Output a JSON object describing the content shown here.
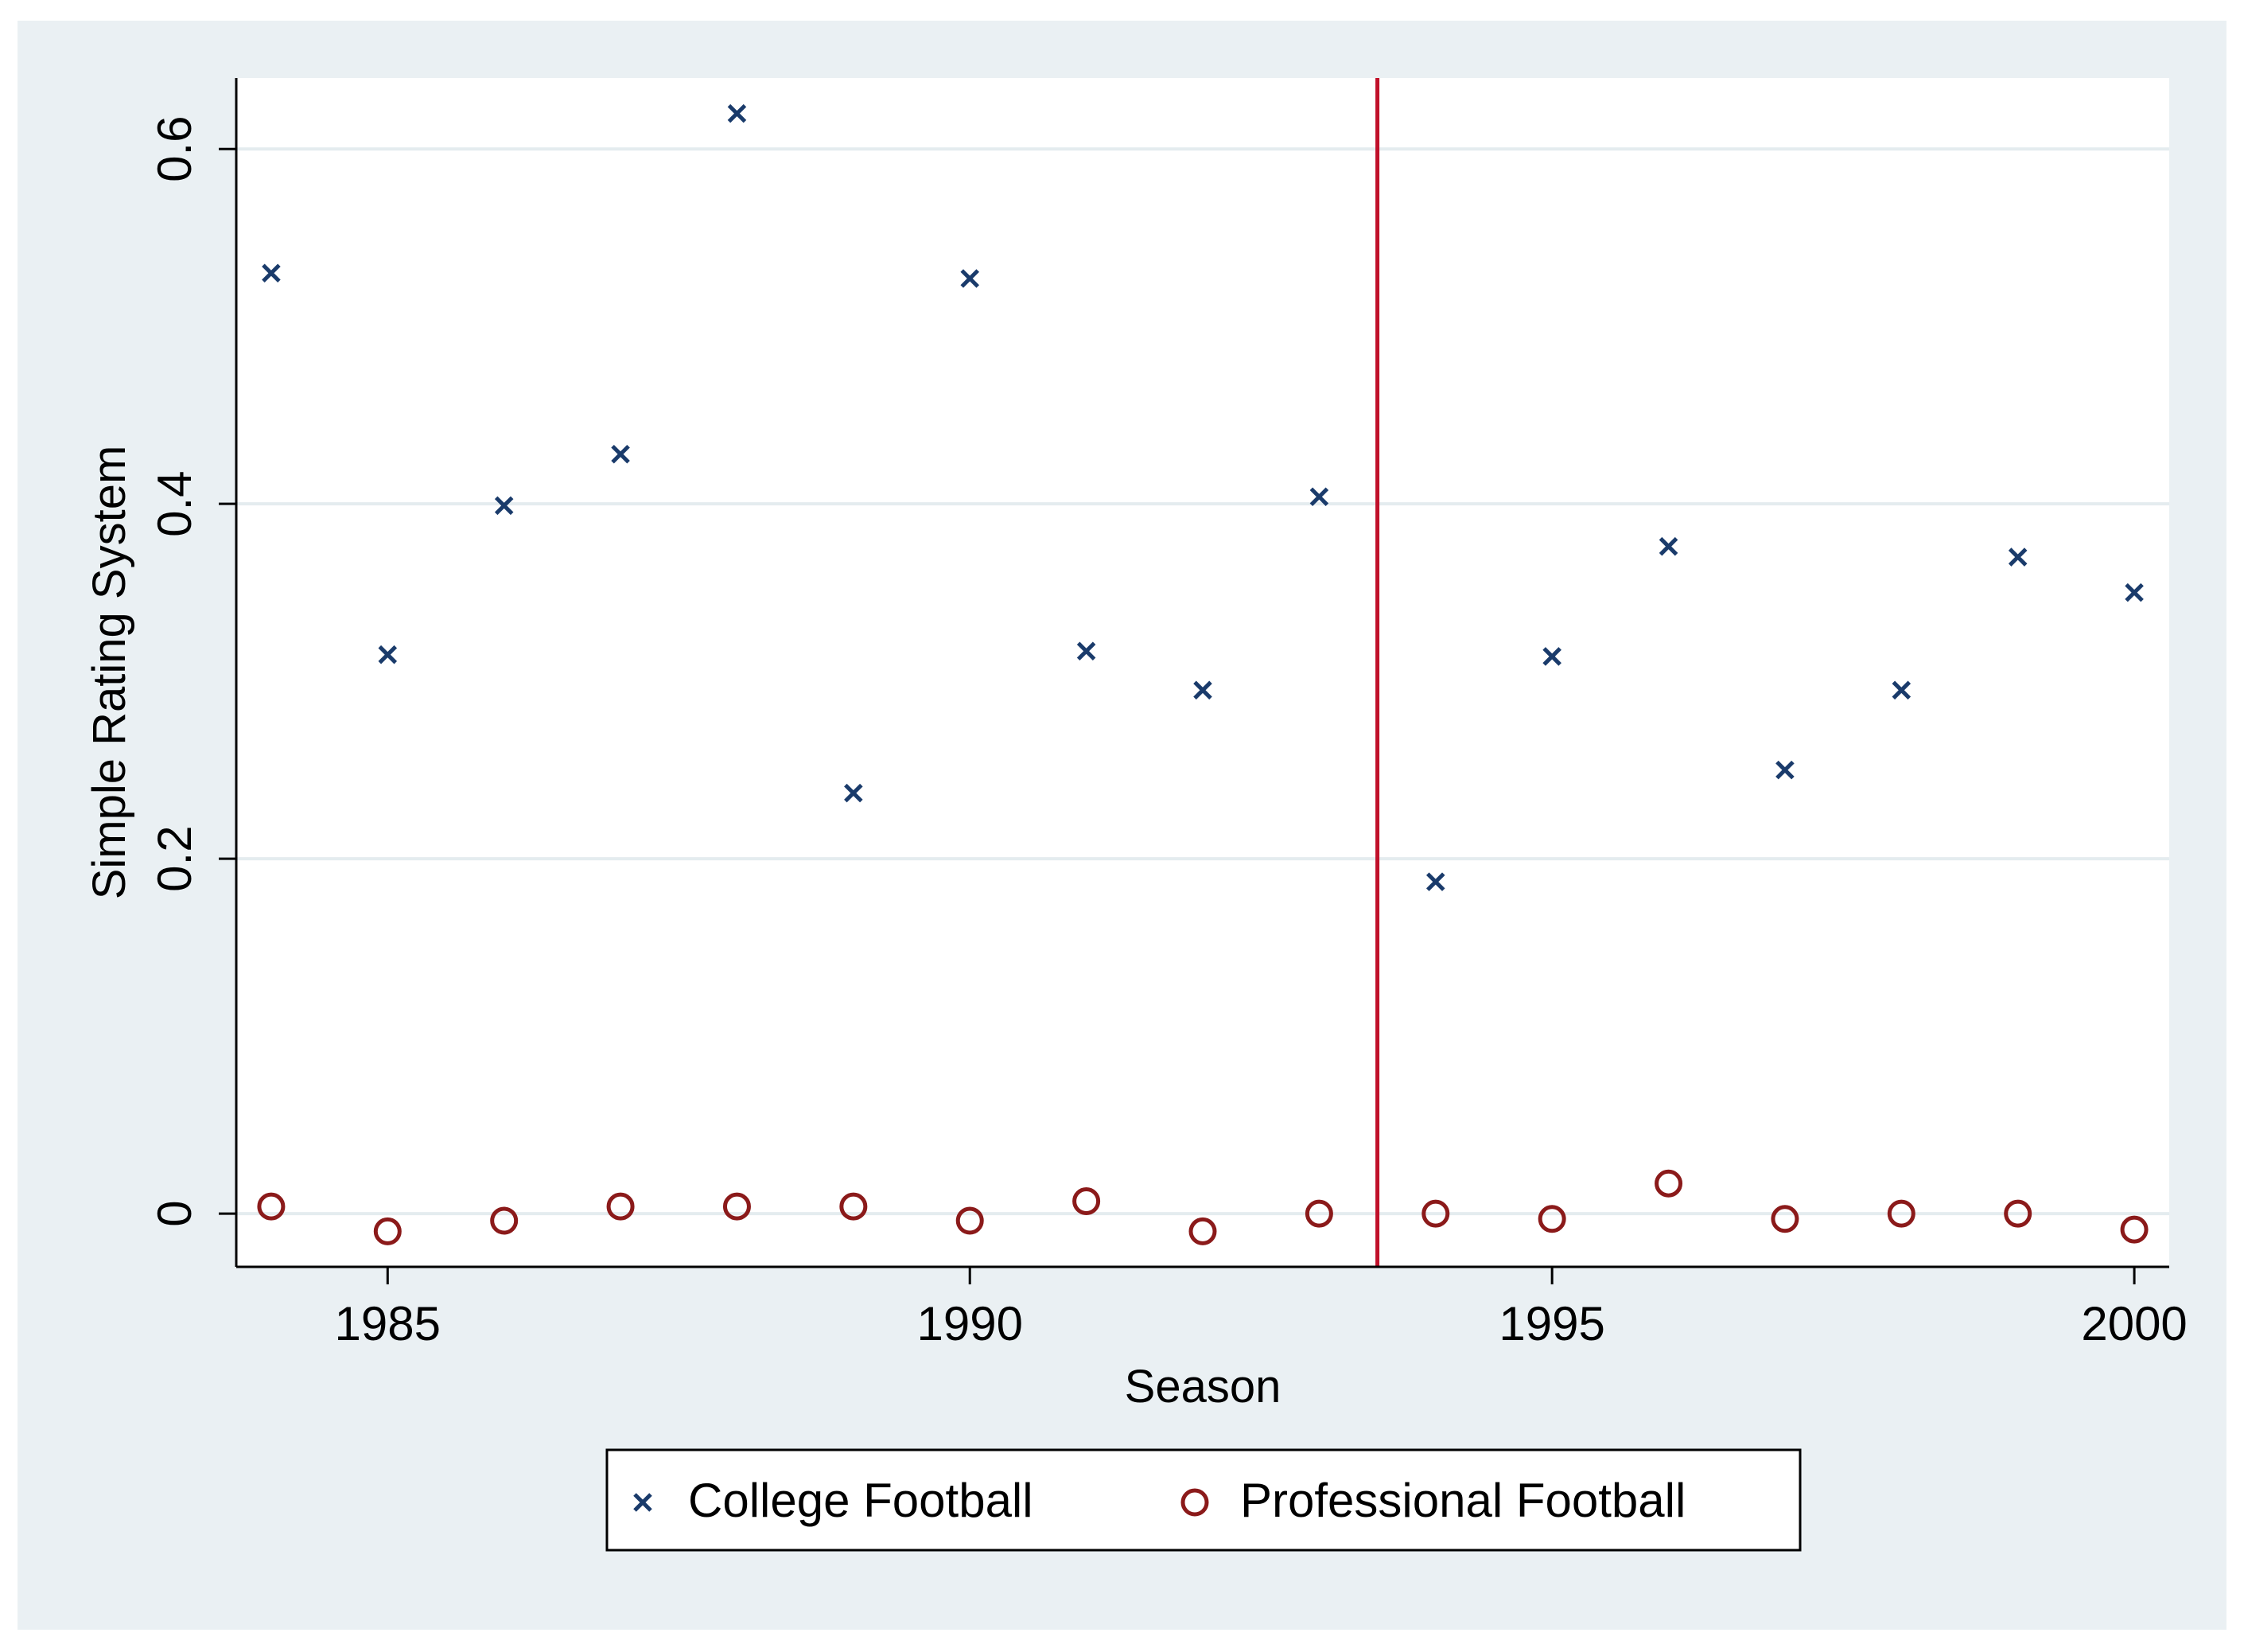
{
  "chart_data": {
    "type": "scatter",
    "title": "",
    "xlabel": "Season",
    "ylabel": "Simple Rating System",
    "xlim": [
      1983.7,
      2000.3
    ],
    "ylim": [
      -0.03,
      0.64
    ],
    "x_ticks": [
      1985,
      1990,
      1995,
      2000
    ],
    "y_ticks": [
      0,
      0.2,
      0.4,
      0.6
    ],
    "x_tick_labels": [
      "1985",
      "1990",
      "1995",
      "2000"
    ],
    "y_tick_labels": [
      "0",
      "0.2",
      "0.4",
      "0.6"
    ],
    "grid": "horizontal",
    "legend_position": "bottom",
    "reference_line": {
      "x": 1993.5,
      "color": "#c0102a"
    },
    "series": [
      {
        "name": "College Football",
        "marker": "x",
        "color": "#1a3b6b",
        "x": [
          1984,
          1985,
          1986,
          1987,
          1988,
          1989,
          1990,
          1991,
          1992,
          1993,
          1994,
          1995,
          1996,
          1997,
          1998,
          1999,
          2000
        ],
        "y": [
          0.53,
          0.315,
          0.399,
          0.428,
          0.62,
          0.237,
          0.527,
          0.317,
          0.295,
          0.404,
          0.187,
          0.314,
          0.376,
          0.25,
          0.295,
          0.37,
          0.35
        ]
      },
      {
        "name": "Professional Football",
        "marker": "circle",
        "color": "#8b1a1a",
        "x": [
          1984,
          1985,
          1986,
          1987,
          1988,
          1989,
          1990,
          1991,
          1992,
          1993,
          1994,
          1995,
          1996,
          1997,
          1998,
          1999,
          2000
        ],
        "y": [
          0.004,
          -0.01,
          -0.004,
          0.004,
          0.004,
          0.004,
          -0.004,
          0.007,
          -0.01,
          0.0,
          0.0,
          -0.003,
          0.017,
          -0.003,
          0.0,
          0.0,
          -0.009
        ]
      }
    ]
  },
  "colors": {
    "outer_background": "#eaf0f3",
    "plot_background": "#ffffff",
    "grid": "#e4ecef",
    "axis": "#000000"
  }
}
